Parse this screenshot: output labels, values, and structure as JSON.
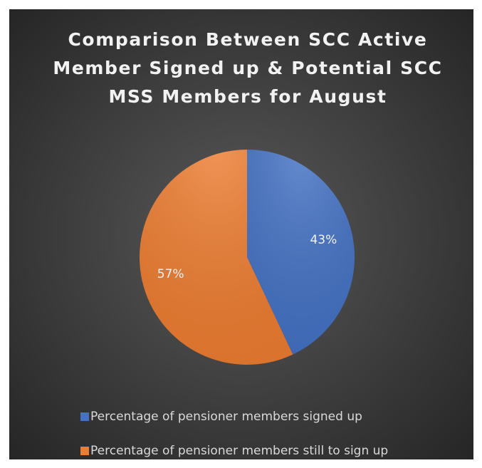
{
  "chart_data": {
    "type": "pie",
    "title": "Comparison Between SCC Active Member Signed up & Potential SCC MSS Members for August",
    "categories": [
      "Percentage of pensioner members signed up",
      "Percentage of pensioner members still to sign up"
    ],
    "values": [
      43,
      57
    ],
    "value_labels": [
      "43%",
      "57%"
    ],
    "colors": [
      "#4472c4",
      "#ed7d31"
    ],
    "legend": "bottom"
  }
}
